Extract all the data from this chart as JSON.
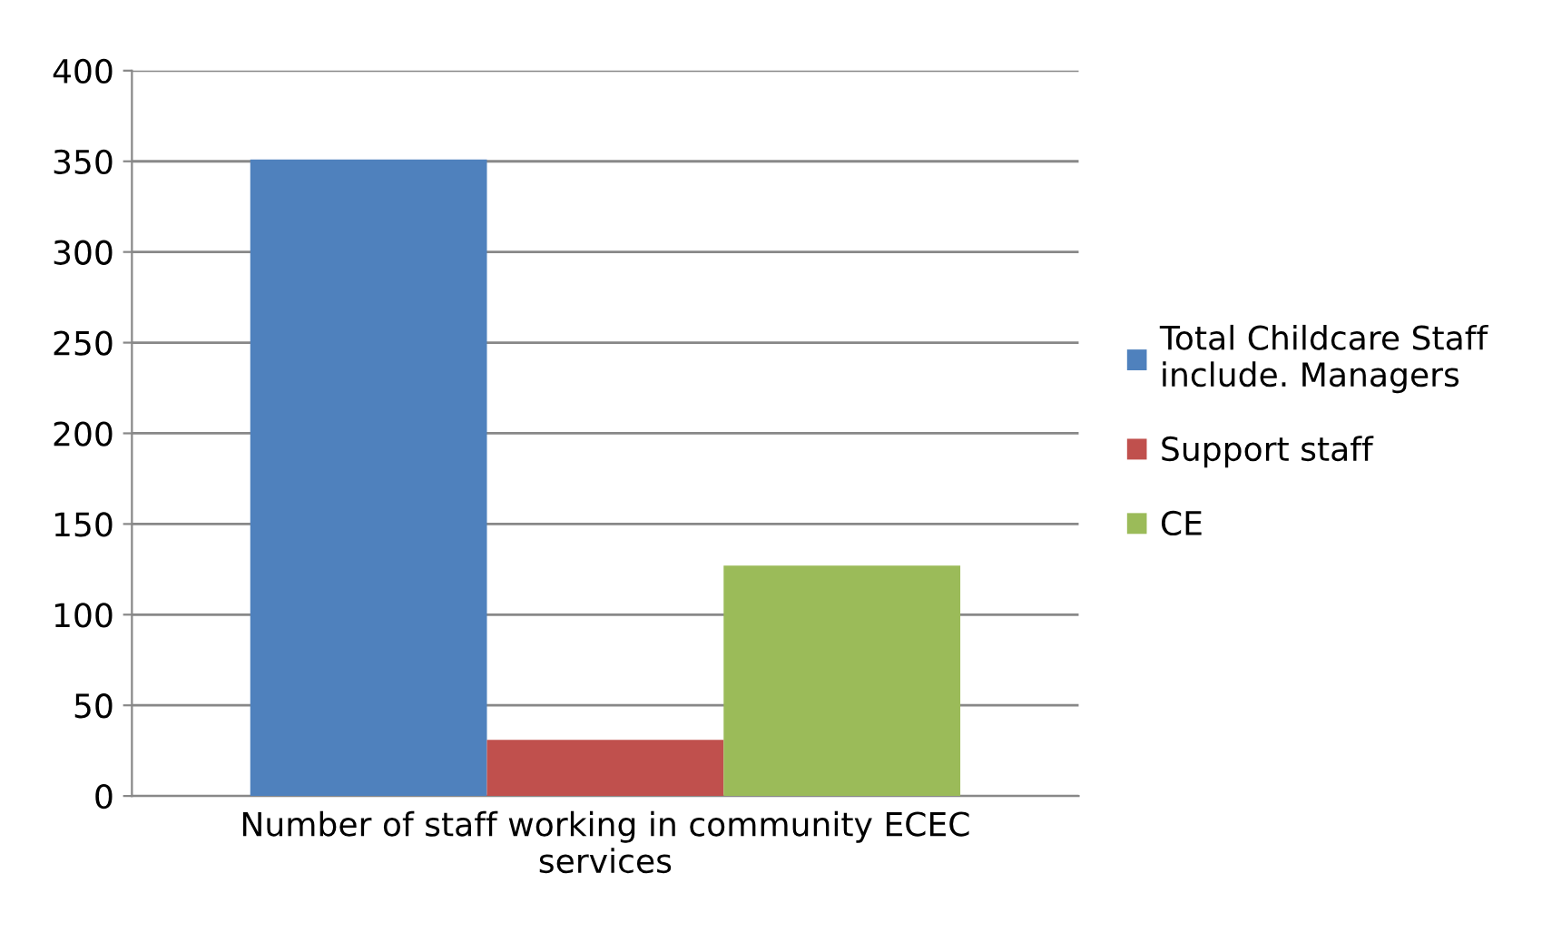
{
  "chart_data": {
    "type": "bar",
    "categories": [
      "Number of staff working in community ECEC\nservices"
    ],
    "series": [
      {
        "name": "Total Childcare Staff\ninclude. Managers",
        "color": "#4f81bd",
        "values": [
          351
        ]
      },
      {
        "name": "Support staff",
        "color": "#c0504d",
        "values": [
          31
        ]
      },
      {
        "name": "CE",
        "color": "#9bbb59",
        "values": [
          127
        ]
      }
    ],
    "ylim": [
      0,
      400
    ],
    "yticks": [
      0,
      50,
      100,
      150,
      200,
      250,
      300,
      350,
      400
    ],
    "grid": "y",
    "legend": "right"
  }
}
